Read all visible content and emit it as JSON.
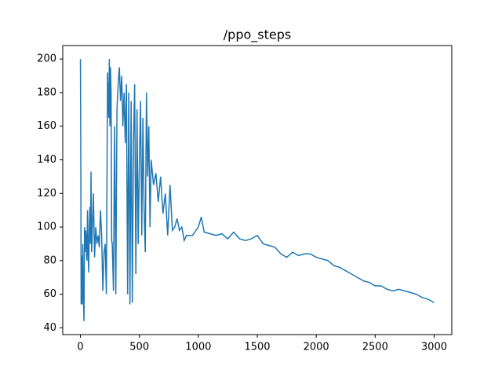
{
  "chart_data": {
    "type": "line",
    "title": "/ppo_steps",
    "color": "#1f77b4",
    "x": [
      0,
      3,
      6,
      10,
      15,
      20,
      25,
      30,
      35,
      40,
      45,
      50,
      55,
      60,
      65,
      70,
      75,
      80,
      85,
      90,
      95,
      100,
      110,
      120,
      130,
      140,
      150,
      160,
      170,
      180,
      190,
      200,
      210,
      220,
      230,
      240,
      245,
      250,
      255,
      260,
      265,
      270,
      280,
      290,
      300,
      310,
      320,
      330,
      340,
      350,
      360,
      370,
      380,
      390,
      400,
      410,
      420,
      430,
      440,
      450,
      460,
      470,
      480,
      490,
      500,
      510,
      520,
      530,
      540,
      550,
      560,
      570,
      580,
      590,
      600,
      620,
      640,
      660,
      680,
      700,
      720,
      740,
      760,
      780,
      800,
      820,
      840,
      860,
      880,
      900,
      950,
      1000,
      1025,
      1050,
      1100,
      1150,
      1200,
      1250,
      1300,
      1350,
      1400,
      1450,
      1500,
      1550,
      1600,
      1650,
      1700,
      1750,
      1800,
      1850,
      1900,
      1950,
      2000,
      2050,
      2100,
      2150,
      2200,
      2250,
      2300,
      2350,
      2400,
      2450,
      2500,
      2550,
      2600,
      2650,
      2700,
      2750,
      2800,
      2850,
      2900,
      2950,
      3000
    ],
    "values": [
      200,
      145,
      54,
      83,
      54,
      90,
      60,
      44,
      100,
      85,
      98,
      90,
      80,
      110,
      85,
      73,
      100,
      112,
      90,
      133,
      85,
      95,
      120,
      82,
      100,
      90,
      95,
      88,
      110,
      95,
      62,
      85,
      90,
      60,
      192,
      165,
      200,
      160,
      195,
      180,
      92,
      90,
      62,
      160,
      60,
      170,
      185,
      195,
      175,
      190,
      160,
      180,
      150,
      185,
      60,
      180,
      54,
      175,
      55,
      150,
      185,
      72,
      170,
      90,
      140,
      175,
      95,
      165,
      110,
      85,
      180,
      130,
      160,
      100,
      140,
      125,
      132,
      115,
      130,
      108,
      120,
      95,
      125,
      98,
      100,
      105,
      98,
      100,
      92,
      95,
      95,
      100,
      106,
      97,
      96,
      95,
      96,
      93,
      97,
      93,
      92,
      93,
      95,
      90,
      89,
      88,
      84,
      82,
      85,
      83,
      84,
      84,
      82,
      81,
      80,
      77,
      76,
      74,
      72,
      70,
      68,
      67,
      65,
      65,
      63,
      62,
      63,
      62,
      61,
      60,
      58,
      57,
      55
    ],
    "xlim": [
      -150,
      3150
    ],
    "ylim": [
      36,
      208
    ],
    "xticks": [
      0,
      500,
      1000,
      1500,
      2000,
      2500,
      3000
    ],
    "yticks": [
      40,
      60,
      80,
      100,
      120,
      140,
      160,
      180,
      200
    ]
  }
}
